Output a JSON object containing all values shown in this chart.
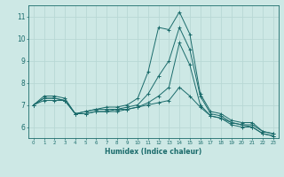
{
  "title": "",
  "xlabel": "Humidex (Indice chaleur)",
  "ylabel": "",
  "background_color": "#cde8e5",
  "grid_color": "#b8d8d5",
  "line_color": "#1a6b6b",
  "xlim": [
    -0.5,
    23.5
  ],
  "ylim": [
    5.5,
    11.5
  ],
  "yticks": [
    6,
    7,
    8,
    9,
    10,
    11
  ],
  "xticks": [
    0,
    1,
    2,
    3,
    4,
    5,
    6,
    7,
    8,
    9,
    10,
    11,
    12,
    13,
    14,
    15,
    16,
    17,
    18,
    19,
    20,
    21,
    22,
    23
  ],
  "series": [
    [
      7.0,
      7.4,
      7.4,
      7.3,
      6.6,
      6.7,
      6.8,
      6.9,
      6.9,
      7.0,
      7.3,
      8.5,
      10.5,
      10.4,
      11.2,
      10.2,
      7.5,
      6.7,
      6.6,
      6.3,
      6.2,
      6.2,
      5.8,
      5.7
    ],
    [
      7.0,
      7.3,
      7.3,
      7.2,
      6.6,
      6.7,
      6.8,
      6.8,
      6.8,
      6.9,
      7.0,
      7.5,
      8.3,
      9.0,
      10.5,
      9.5,
      7.4,
      6.6,
      6.5,
      6.2,
      6.1,
      6.1,
      5.8,
      5.7
    ],
    [
      7.0,
      7.3,
      7.3,
      7.2,
      6.6,
      6.6,
      6.7,
      6.7,
      6.8,
      6.8,
      6.9,
      7.1,
      7.4,
      7.8,
      9.8,
      8.8,
      7.0,
      6.5,
      6.4,
      6.2,
      6.1,
      6.0,
      5.7,
      5.6
    ],
    [
      7.0,
      7.2,
      7.2,
      7.2,
      6.6,
      6.6,
      6.7,
      6.7,
      6.7,
      6.8,
      6.9,
      7.0,
      7.1,
      7.2,
      7.8,
      7.4,
      6.9,
      6.5,
      6.4,
      6.1,
      6.0,
      6.0,
      5.7,
      5.6
    ]
  ]
}
